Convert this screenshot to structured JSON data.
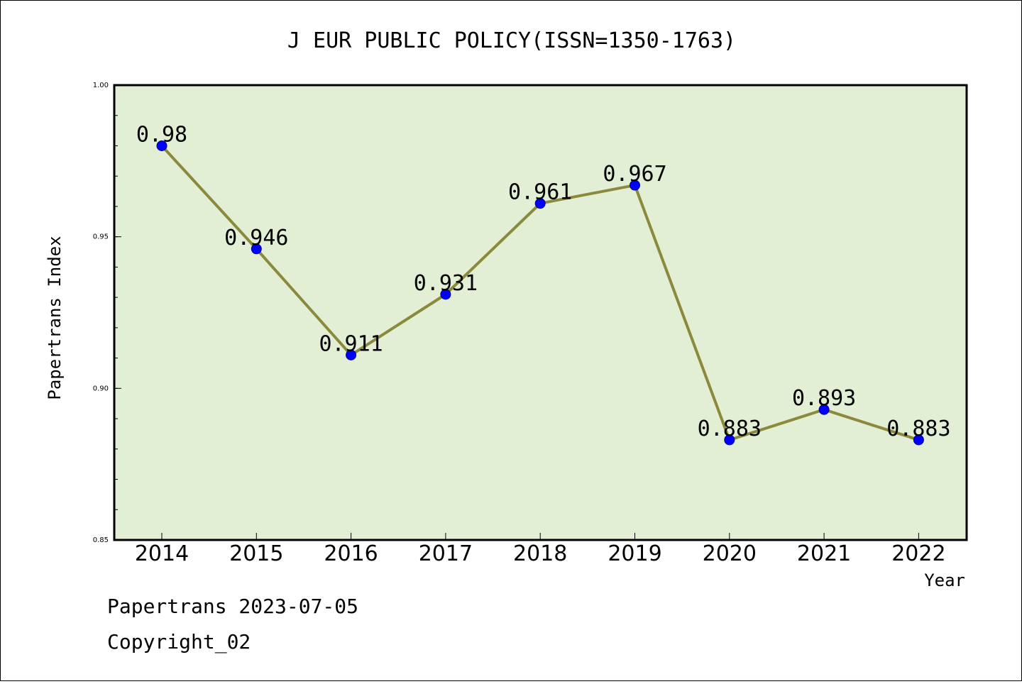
{
  "chart_data": {
    "type": "line",
    "title": "J EUR PUBLIC POLICY(ISSN=1350-1763)",
    "xlabel": "Year",
    "ylabel": "Papertrans Index",
    "categories": [
      "2014",
      "2015",
      "2016",
      "2017",
      "2018",
      "2019",
      "2020",
      "2021",
      "2022"
    ],
    "series": [
      {
        "values": [
          0.98,
          0.946,
          0.911,
          0.931,
          0.961,
          0.967,
          0.883,
          0.893,
          0.883
        ]
      }
    ],
    "data_labels": [
      "0.98",
      "0.946",
      "0.911",
      "0.931",
      "0.961",
      "0.967",
      "0.883",
      "0.893",
      "0.883"
    ],
    "ylim": [
      0.85,
      1.0
    ],
    "yticks": [
      "0.85",
      "0.90",
      "0.95",
      "1.00"
    ],
    "grid": false,
    "colors": {
      "plot_background": "#e2efd5",
      "line": "#8b8a3c",
      "marker": "#0000ff"
    }
  },
  "footer": {
    "date_line": "Papertrans 2023-07-05",
    "copyright_line": "Copyright_02"
  }
}
